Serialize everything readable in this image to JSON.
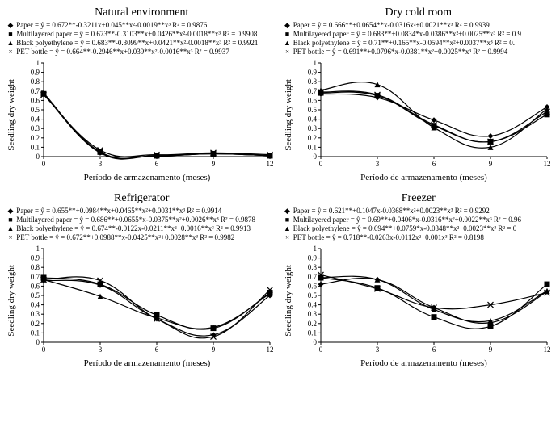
{
  "global": {
    "xlabel": "Período de armazenamento (meses)",
    "ylabel": "Seedling dry weight",
    "xlim": [
      0,
      12
    ],
    "ylim": [
      0,
      1
    ],
    "xticks": [
      0,
      3,
      6,
      9,
      12
    ],
    "yticks": [
      0,
      0.1,
      0.2,
      0.3,
      0.4,
      0.5,
      0.6,
      0.7,
      0.8,
      0.9,
      1
    ],
    "background_color": "#ffffff",
    "axis_color": "#000000",
    "line_color": "#000000",
    "marker_color": "#000000",
    "title_fontsize": 14,
    "legend_fontsize": 9,
    "axis_label_fontsize": 11,
    "tick_fontsize": 9
  },
  "marker_glyphs": {
    "paper": "◆",
    "multilayered": "■",
    "black_poly": "▲",
    "pet_bottle": "×"
  },
  "panels": [
    {
      "key": "natural",
      "title": "Natural environment",
      "legend": [
        {
          "marker": "paper",
          "text": "Paper = ŷ = 0.672**-0.3211x+0.045**x²-0.0019**x³     R² = 0.9876"
        },
        {
          "marker": "multilayered",
          "text": "Multilayered paper = ŷ = 0.673**-0.3103**x+0.0426**x²-0.0018**x³  R² = 0.9908"
        },
        {
          "marker": "black_poly",
          "text": "Black polyethylene = ŷ = 0.683**-0.3099**x+0.0421**x²-0.0018**x³  R² = 0.9921"
        },
        {
          "marker": "pet_bottle",
          "text": "PET bottle = ŷ = 0.664**-0.2946**x+0.039**x²-0.0016**x³  R² = 0.9937"
        }
      ],
      "series": [
        {
          "marker": "paper",
          "y": [
            0.67,
            0.04,
            0.01,
            0.03,
            0.01
          ]
        },
        {
          "marker": "multilayered",
          "y": [
            0.67,
            0.05,
            0.01,
            0.03,
            0.01
          ]
        },
        {
          "marker": "black_poly",
          "y": [
            0.68,
            0.05,
            0.01,
            0.03,
            0.01
          ]
        },
        {
          "marker": "pet_bottle",
          "y": [
            0.66,
            0.07,
            0.02,
            0.04,
            0.02
          ]
        }
      ]
    },
    {
      "key": "drycold",
      "title": "Dry cold room",
      "legend": [
        {
          "marker": "paper",
          "text": "Paper = ŷ = 0.666**+0.0654**x-0.0316x²+0.0021**x³     R² = 0.9939"
        },
        {
          "marker": "multilayered",
          "text": "Multilayered paper = ŷ = 0.683**+0.0834*x-0.0386**x²+0.0025**x³  R² = 0.9"
        },
        {
          "marker": "black_poly",
          "text": "Black polyethylene = ŷ = 0.71**+0.165**x-0.0594**x²+0.0037**x³   R² = 0."
        },
        {
          "marker": "pet_bottle",
          "text": "PET bottle = ŷ = 0.691**+0.0796*x-0.0381**x²+0.0025**x³   R² = 0.9994"
        }
      ],
      "series": [
        {
          "marker": "paper",
          "y": [
            0.67,
            0.63,
            0.39,
            0.22,
            0.53
          ]
        },
        {
          "marker": "multilayered",
          "y": [
            0.68,
            0.65,
            0.33,
            0.16,
            0.45
          ]
        },
        {
          "marker": "black_poly",
          "y": [
            0.71,
            0.77,
            0.31,
            0.1,
            0.51
          ]
        },
        {
          "marker": "pet_bottle",
          "y": [
            0.69,
            0.66,
            0.34,
            0.16,
            0.48
          ]
        }
      ]
    },
    {
      "key": "refrigerator",
      "title": "Refrigerator",
      "legend": [
        {
          "marker": "paper",
          "text": "Paper = ŷ = 0.655**+0.0984**x+0.0465**x²+0.0031**x³   R² = 0.9914"
        },
        {
          "marker": "multilayered",
          "text": "Multilayered paper = ŷ = 0.686**+0.0655*x-0.0375**x²+0.0026**x³   R² = 0.9878"
        },
        {
          "marker": "black_poly",
          "text": "Black polyethylene = ŷ = 0.674**-0.0122x-0.0211**x²+0.0016**x³   R² = 0.9913"
        },
        {
          "marker": "pet_bottle",
          "text": "PET bottle = ŷ = 0.672**+0.0988**x-0.0425**x²+0.0028**x³   R² = 0.9982"
        }
      ],
      "series": [
        {
          "marker": "paper",
          "y": [
            0.66,
            0.61,
            0.25,
            0.08,
            0.5
          ]
        },
        {
          "marker": "multilayered",
          "y": [
            0.69,
            0.62,
            0.29,
            0.15,
            0.53
          ]
        },
        {
          "marker": "black_poly",
          "y": [
            0.67,
            0.49,
            0.26,
            0.16,
            0.52
          ]
        },
        {
          "marker": "pet_bottle",
          "y": [
            0.67,
            0.66,
            0.25,
            0.06,
            0.56
          ]
        }
      ]
    },
    {
      "key": "freezer",
      "title": "Freezer",
      "legend": [
        {
          "marker": "paper",
          "text": "Paper = ŷ = 0.621**+0.1047x-0.0368**x²+0.0023**x³   R² = 0.9292"
        },
        {
          "marker": "multilayered",
          "text": "Multilayered paper = ŷ = 0.69**+0.0406*x-0.0316**x²+0.0022**x³   R² = 0.96"
        },
        {
          "marker": "black_poly",
          "text": "Black polyethylene = ŷ = 0.694**+0.0759*x-0.0348**x²+0.0023**x³   R² = 0"
        },
        {
          "marker": "pet_bottle",
          "text": "PET bottle = ŷ = 0.718**-0.0263x-0.0112x²+0.001x³   R² = 0.8198"
        }
      ],
      "series": [
        {
          "marker": "paper",
          "y": [
            0.62,
            0.67,
            0.37,
            0.21,
            0.54
          ]
        },
        {
          "marker": "multilayered",
          "y": [
            0.69,
            0.58,
            0.27,
            0.17,
            0.62
          ]
        },
        {
          "marker": "black_poly",
          "y": [
            0.69,
            0.67,
            0.35,
            0.23,
            0.55
          ]
        },
        {
          "marker": "pet_bottle",
          "y": [
            0.72,
            0.57,
            0.37,
            0.4,
            0.53
          ]
        }
      ]
    }
  ]
}
